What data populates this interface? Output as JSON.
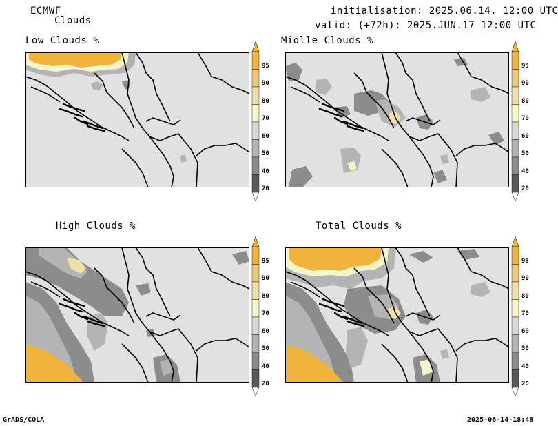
{
  "header": {
    "model": "ECMWF",
    "product": "Clouds",
    "initialisation": "initialisation: 2025.06.14. 12:00 UTC",
    "valid": "valid: (+72h): 2025.JUN.17 12:00 UTC"
  },
  "panels": [
    {
      "title": "Low Clouds %"
    },
    {
      "title": "Midlle Clouds %"
    },
    {
      "title": "High Clouds %"
    },
    {
      "title": "Total Clouds %"
    }
  ],
  "colorbar": {
    "levels": [
      "95",
      "90",
      "80",
      "70",
      "60",
      "50",
      "40",
      "20"
    ],
    "colors": {
      "c95": "#f0b43c",
      "c90": "#f0c878",
      "c80": "#f0e0a8",
      "c70": "#f5f5c8",
      "c60": "#d9d9d9",
      "c50": "#b4b4b4",
      "c40": "#8c8c8c",
      "c20": "#5a5a5a",
      "below": "#ffffff",
      "background": "#e1e1e1"
    }
  },
  "footer": {
    "left": "GrADS/COLA",
    "right": "2025-06-14-18:48"
  }
}
